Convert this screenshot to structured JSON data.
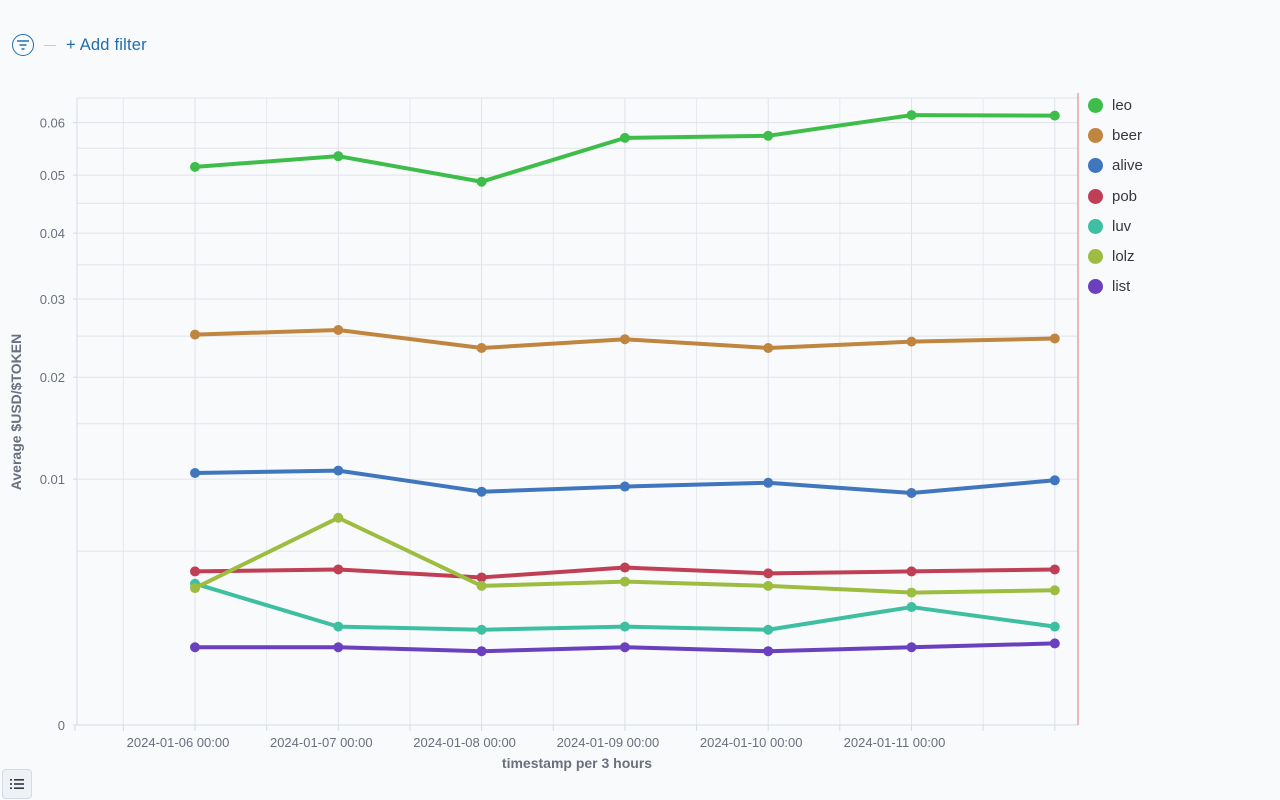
{
  "toolbar": {
    "filter_icon": "filter-icon",
    "add_filter_label": "+ Add filter"
  },
  "legend_toggle_icon": "list-icon",
  "chart_data": {
    "type": "line",
    "title": "",
    "xlabel": "timestamp per 3 hours",
    "ylabel": "Average $USD/$TOKEN",
    "yscale": "sqrt",
    "ylim": [
      0,
      0.065
    ],
    "yticks": [
      0,
      0.01,
      0.02,
      0.03,
      0.04,
      0.05,
      0.06
    ],
    "ytick_labels": [
      "0",
      "0.01",
      "0.02",
      "0.03",
      "0.04",
      "0.05",
      "0.06"
    ],
    "x": [
      "2024-01-06 00:00",
      "2024-01-07 00:00",
      "2024-01-08 00:00",
      "2024-01-09 00:00",
      "2024-01-10 00:00",
      "2024-01-11 00:00",
      "2024-01-12 00:00"
    ],
    "xtick_labels": [
      "2024-01-06 00:00",
      "2024-01-07 00:00",
      "2024-01-08 00:00",
      "2024-01-09 00:00",
      "2024-01-10 00:00",
      "2024-01-11 00:00"
    ],
    "grid": true,
    "legend_position": "right",
    "series": [
      {
        "name": "leo",
        "color": "#3fbd4a",
        "values": [
          0.0515,
          0.0535,
          0.0488,
          0.057,
          0.0574,
          0.0615,
          0.0614
        ]
      },
      {
        "name": "beer",
        "color": "#c0853f",
        "values": [
          0.0252,
          0.0258,
          0.0235,
          0.0246,
          0.0235,
          0.0243,
          0.0247
        ]
      },
      {
        "name": "alive",
        "color": "#3f76be",
        "values": [
          0.0105,
          0.0107,
          0.009,
          0.0094,
          0.0097,
          0.0089,
          0.0099
        ]
      },
      {
        "name": "pob",
        "color": "#c03f55",
        "values": [
          0.0039,
          0.004,
          0.0036,
          0.0041,
          0.0038,
          0.0039,
          0.004
        ]
      },
      {
        "name": "luv",
        "color": "#3fbfa1",
        "values": [
          0.0033,
          0.0016,
          0.0015,
          0.0016,
          0.0015,
          0.0023,
          0.0016
        ]
      },
      {
        "name": "lolz",
        "color": "#9cbd3f",
        "values": [
          0.0031,
          0.0071,
          0.0032,
          0.0034,
          0.0032,
          0.0029,
          0.003
        ]
      },
      {
        "name": "list",
        "color": "#6a40be",
        "values": [
          0.001,
          0.001,
          0.0009,
          0.001,
          0.0009,
          0.001,
          0.0011
        ]
      }
    ]
  }
}
